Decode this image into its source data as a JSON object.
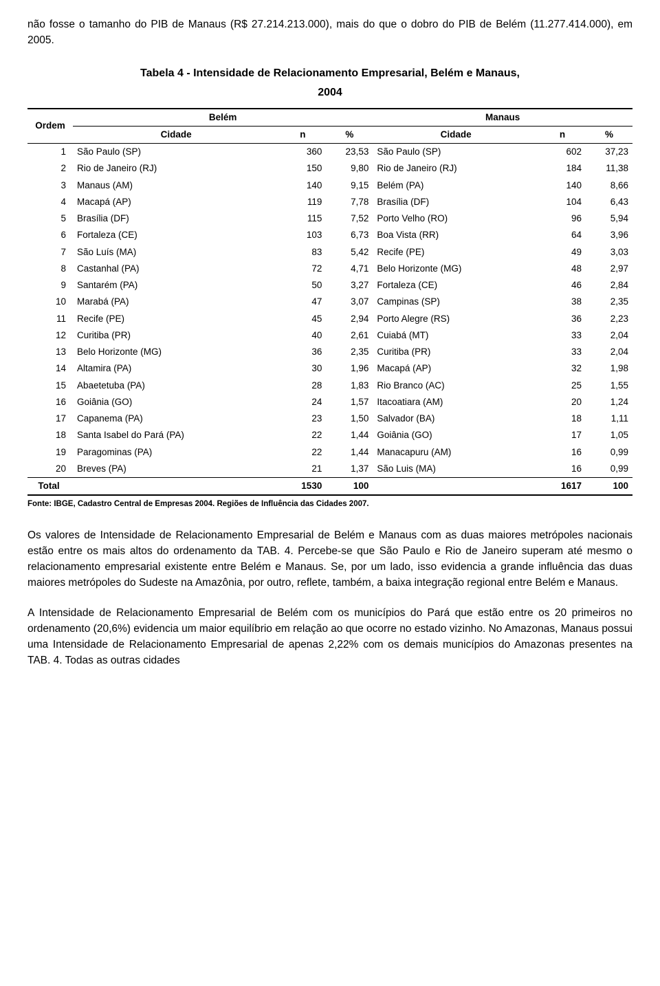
{
  "intro": "não fosse o tamanho do PIB de Manaus (R$ 27.214.213.000), mais do que o dobro do PIB de Belém (11.277.414.000), em 2005.",
  "tableTitle": "Tabela 4 - Intensidade de Relacionamento Empresarial, Belém e Manaus,",
  "tableYear": "2004",
  "headers": {
    "ordem": "Ordem",
    "belem": "Belém",
    "manaus": "Manaus",
    "cidade": "Cidade",
    "n": "n",
    "pct": "%"
  },
  "rows": [
    {
      "ordem": "1",
      "b_city": "São Paulo (SP)",
      "b_n": "360",
      "b_pct": "23,53",
      "m_city": "São Paulo (SP)",
      "m_n": "602",
      "m_pct": "37,23"
    },
    {
      "ordem": "2",
      "b_city": "Rio de Janeiro (RJ)",
      "b_n": "150",
      "b_pct": "9,80",
      "m_city": "Rio de Janeiro (RJ)",
      "m_n": "184",
      "m_pct": "11,38"
    },
    {
      "ordem": "3",
      "b_city": "Manaus (AM)",
      "b_n": "140",
      "b_pct": "9,15",
      "m_city": "Belém (PA)",
      "m_n": "140",
      "m_pct": "8,66"
    },
    {
      "ordem": "4",
      "b_city": "Macapá (AP)",
      "b_n": "119",
      "b_pct": "7,78",
      "m_city": "Brasília (DF)",
      "m_n": "104",
      "m_pct": "6,43"
    },
    {
      "ordem": "5",
      "b_city": "Brasília (DF)",
      "b_n": "115",
      "b_pct": "7,52",
      "m_city": "Porto Velho (RO)",
      "m_n": "96",
      "m_pct": "5,94"
    },
    {
      "ordem": "6",
      "b_city": "Fortaleza (CE)",
      "b_n": "103",
      "b_pct": "6,73",
      "m_city": "Boa Vista (RR)",
      "m_n": "64",
      "m_pct": "3,96"
    },
    {
      "ordem": "7",
      "b_city": "São Luís (MA)",
      "b_n": "83",
      "b_pct": "5,42",
      "m_city": "Recife (PE)",
      "m_n": "49",
      "m_pct": "3,03"
    },
    {
      "ordem": "8",
      "b_city": "Castanhal (PA)",
      "b_n": "72",
      "b_pct": "4,71",
      "m_city": "Belo Horizonte (MG)",
      "m_n": "48",
      "m_pct": "2,97"
    },
    {
      "ordem": "9",
      "b_city": "Santarém (PA)",
      "b_n": "50",
      "b_pct": "3,27",
      "m_city": "Fortaleza (CE)",
      "m_n": "46",
      "m_pct": "2,84"
    },
    {
      "ordem": "10",
      "b_city": "Marabá (PA)",
      "b_n": "47",
      "b_pct": "3,07",
      "m_city": "Campinas (SP)",
      "m_n": "38",
      "m_pct": "2,35"
    },
    {
      "ordem": "11",
      "b_city": "Recife (PE)",
      "b_n": "45",
      "b_pct": "2,94",
      "m_city": "Porto Alegre (RS)",
      "m_n": "36",
      "m_pct": "2,23"
    },
    {
      "ordem": "12",
      "b_city": "Curitiba (PR)",
      "b_n": "40",
      "b_pct": "2,61",
      "m_city": "Cuiabá (MT)",
      "m_n": "33",
      "m_pct": "2,04"
    },
    {
      "ordem": "13",
      "b_city": "Belo Horizonte (MG)",
      "b_n": "36",
      "b_pct": "2,35",
      "m_city": "Curitiba (PR)",
      "m_n": "33",
      "m_pct": "2,04"
    },
    {
      "ordem": "14",
      "b_city": "Altamira (PA)",
      "b_n": "30",
      "b_pct": "1,96",
      "m_city": "Macapá (AP)",
      "m_n": "32",
      "m_pct": "1,98"
    },
    {
      "ordem": "15",
      "b_city": "Abaetetuba (PA)",
      "b_n": "28",
      "b_pct": "1,83",
      "m_city": "Rio Branco (AC)",
      "m_n": "25",
      "m_pct": "1,55"
    },
    {
      "ordem": "16",
      "b_city": "Goiânia (GO)",
      "b_n": "24",
      "b_pct": "1,57",
      "m_city": "Itacoatiara (AM)",
      "m_n": "20",
      "m_pct": "1,24"
    },
    {
      "ordem": "17",
      "b_city": "Capanema (PA)",
      "b_n": "23",
      "b_pct": "1,50",
      "m_city": "Salvador (BA)",
      "m_n": "18",
      "m_pct": "1,11"
    },
    {
      "ordem": "18",
      "b_city": "Santa Isabel do Pará (PA)",
      "b_n": "22",
      "b_pct": "1,44",
      "m_city": "Goiânia (GO)",
      "m_n": "17",
      "m_pct": "1,05"
    },
    {
      "ordem": "19",
      "b_city": "Paragominas (PA)",
      "b_n": "22",
      "b_pct": "1,44",
      "m_city": "Manacapuru (AM)",
      "m_n": "16",
      "m_pct": "0,99"
    },
    {
      "ordem": "20",
      "b_city": "Breves (PA)",
      "b_n": "21",
      "b_pct": "1,37",
      "m_city": "São Luis (MA)",
      "m_n": "16",
      "m_pct": "0,99"
    }
  ],
  "total": {
    "label": "Total",
    "b_n": "1530",
    "b_pct": "100",
    "m_n": "1617",
    "m_pct": "100"
  },
  "fonte": "Fonte: IBGE, Cadastro Central de Empresas 2004. Regiões de Influência das Cidades 2007.",
  "p2": "Os valores de Intensidade de Relacionamento Empresarial de Belém e Manaus com as duas maiores metrópoles nacionais estão entre os mais altos do ordenamento da TAB. 4. Percebe-se que São Paulo e Rio de Janeiro superam até mesmo o relacionamento empresarial existente entre Belém e Manaus. Se, por um lado, isso evidencia a grande influência das duas maiores metrópoles do Sudeste na Amazônia, por outro, reflete, também, a baixa integração regional entre Belém e Manaus.",
  "p3": "A Intensidade de Relacionamento Empresarial de Belém com os municípios do Pará que estão entre os 20 primeiros no ordenamento (20,6%) evidencia um maior equilíbrio em relação ao que ocorre no estado vizinho. No Amazonas, Manaus possui uma Intensidade de Relacionamento Empresarial de apenas 2,22% com os demais municípios do Amazonas presentes na TAB. 4. Todas as outras cidades"
}
